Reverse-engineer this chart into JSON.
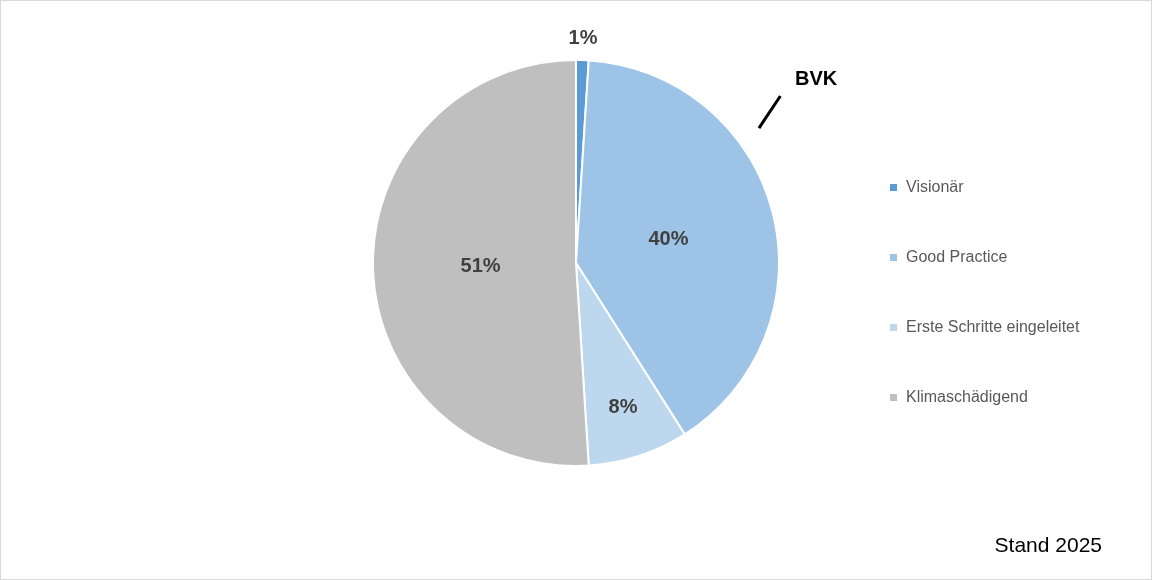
{
  "chart_data": {
    "type": "pie",
    "categories": [
      "Visionär",
      "Good Practice",
      "Erste Schritte eingeleitet",
      "Klimaschädigend"
    ],
    "values": [
      1,
      40,
      8,
      51
    ],
    "colors": [
      "#5b9bd5",
      "#9dc3e6",
      "#bdd7ee",
      "#bfbfbf"
    ],
    "value_labels": [
      "1%",
      "40%",
      "8%",
      "51%"
    ],
    "legend": "right",
    "annotations": [
      {
        "text": "BVK",
        "x": "Good Practice"
      },
      "Stand 2025"
    ]
  }
}
